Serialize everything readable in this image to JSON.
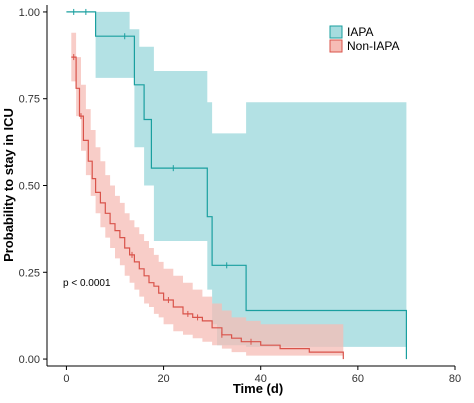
{
  "chart_data": {
    "type": "line",
    "subtype": "kaplan-meier step curve with confidence bands",
    "xlabel": "Time (d)",
    "ylabel": "Probability to stay in ICU",
    "xlim": [
      -4,
      80
    ],
    "ylim": [
      -0.02,
      1.02
    ],
    "xticks": [
      0,
      20,
      40,
      60,
      80
    ],
    "yticks": [
      0,
      0.25,
      0.5,
      0.75,
      1.0
    ],
    "ytick_labels": [
      "0.00",
      "0.25",
      "0.50",
      "0.75",
      "1.00"
    ],
    "grid": false,
    "legend_position": "top-right",
    "annotation": "p < 0.0001",
    "series": [
      {
        "name": "IAPA",
        "color": "#1a9f9f",
        "band_color": "#a6dcdf",
        "steps": [
          [
            0,
            1.0
          ],
          [
            6,
            0.93
          ],
          [
            14,
            0.79
          ],
          [
            16,
            0.69
          ],
          [
            17.5,
            0.55
          ],
          [
            29,
            0.41
          ],
          [
            30,
            0.27
          ],
          [
            37,
            0.14
          ],
          [
            70,
            0.0
          ]
        ],
        "lower": [
          [
            0,
            1.0
          ],
          [
            6,
            0.81
          ],
          [
            14,
            0.61
          ],
          [
            16,
            0.5
          ],
          [
            18,
            0.34
          ],
          [
            29,
            0.2
          ],
          [
            30,
            0.1
          ],
          [
            31,
            0.04
          ],
          [
            37,
            0.035
          ],
          [
            70,
            0.035
          ]
        ],
        "upper": [
          [
            0,
            1.0
          ],
          [
            6,
            1.0
          ],
          [
            13,
            0.95
          ],
          [
            15,
            0.9
          ],
          [
            18,
            0.83
          ],
          [
            29,
            0.74
          ],
          [
            30,
            0.65
          ],
          [
            37,
            0.74
          ],
          [
            70,
            0.74
          ]
        ],
        "censor_marks": [
          [
            1.5,
            1.0
          ],
          [
            4,
            1.0
          ],
          [
            12,
            0.93
          ],
          [
            22,
            0.55
          ],
          [
            33,
            0.27
          ]
        ]
      },
      {
        "name": "Non-IAPA",
        "color": "#d9534a",
        "band_color": "#f6bcb5",
        "steps": [
          [
            1,
            0.87
          ],
          [
            2,
            0.78
          ],
          [
            2.7,
            0.7
          ],
          [
            3.5,
            0.63
          ],
          [
            4.5,
            0.57
          ],
          [
            5.3,
            0.52
          ],
          [
            6,
            0.48
          ],
          [
            7,
            0.45
          ],
          [
            8,
            0.42
          ],
          [
            9,
            0.39
          ],
          [
            10,
            0.37
          ],
          [
            11,
            0.35
          ],
          [
            12,
            0.32
          ],
          [
            13,
            0.3
          ],
          [
            14,
            0.28
          ],
          [
            15,
            0.26
          ],
          [
            16,
            0.24
          ],
          [
            17,
            0.22
          ],
          [
            18,
            0.21
          ],
          [
            19,
            0.19
          ],
          [
            20,
            0.17
          ],
          [
            22,
            0.15
          ],
          [
            24,
            0.13
          ],
          [
            26,
            0.12
          ],
          [
            28,
            0.11
          ],
          [
            30,
            0.09
          ],
          [
            32,
            0.07
          ],
          [
            34,
            0.06
          ],
          [
            36,
            0.05
          ],
          [
            40,
            0.04
          ],
          [
            44,
            0.03
          ],
          [
            50,
            0.02
          ],
          [
            57,
            0.0
          ]
        ],
        "lower": [
          [
            1,
            0.8
          ],
          [
            2,
            0.7
          ],
          [
            3,
            0.6
          ],
          [
            4,
            0.53
          ],
          [
            5,
            0.47
          ],
          [
            6,
            0.42
          ],
          [
            7,
            0.38
          ],
          [
            8,
            0.35
          ],
          [
            9,
            0.32
          ],
          [
            10,
            0.29
          ],
          [
            11,
            0.27
          ],
          [
            12,
            0.24
          ],
          [
            13,
            0.22
          ],
          [
            14,
            0.2
          ],
          [
            15,
            0.18
          ],
          [
            16,
            0.16
          ],
          [
            17,
            0.15
          ],
          [
            18,
            0.13
          ],
          [
            19,
            0.12
          ],
          [
            20,
            0.1
          ],
          [
            22,
            0.08
          ],
          [
            24,
            0.07
          ],
          [
            26,
            0.06
          ],
          [
            28,
            0.05
          ],
          [
            30,
            0.04
          ],
          [
            32,
            0.03
          ],
          [
            34,
            0.02
          ],
          [
            37,
            0.01
          ],
          [
            57,
            0.01
          ]
        ],
        "upper": [
          [
            1,
            0.94
          ],
          [
            2,
            0.87
          ],
          [
            3,
            0.79
          ],
          [
            4,
            0.72
          ],
          [
            5,
            0.66
          ],
          [
            6,
            0.61
          ],
          [
            7,
            0.57
          ],
          [
            8,
            0.53
          ],
          [
            9,
            0.5
          ],
          [
            10,
            0.47
          ],
          [
            11,
            0.45
          ],
          [
            12,
            0.42
          ],
          [
            13,
            0.4
          ],
          [
            14,
            0.38
          ],
          [
            15,
            0.36
          ],
          [
            16,
            0.34
          ],
          [
            17,
            0.32
          ],
          [
            18,
            0.3
          ],
          [
            19,
            0.28
          ],
          [
            20,
            0.26
          ],
          [
            22,
            0.24
          ],
          [
            24,
            0.22
          ],
          [
            26,
            0.2
          ],
          [
            28,
            0.18
          ],
          [
            30,
            0.16
          ],
          [
            32,
            0.14
          ],
          [
            34,
            0.12
          ],
          [
            37,
            0.11
          ],
          [
            40,
            0.1
          ],
          [
            57,
            0.1
          ]
        ],
        "censor_marks": [
          [
            1.5,
            0.87
          ],
          [
            3,
            0.7
          ],
          [
            13.5,
            0.3
          ],
          [
            21,
            0.17
          ],
          [
            25,
            0.13
          ],
          [
            27,
            0.12
          ],
          [
            32,
            0.07
          ],
          [
            38,
            0.05
          ]
        ]
      }
    ]
  }
}
